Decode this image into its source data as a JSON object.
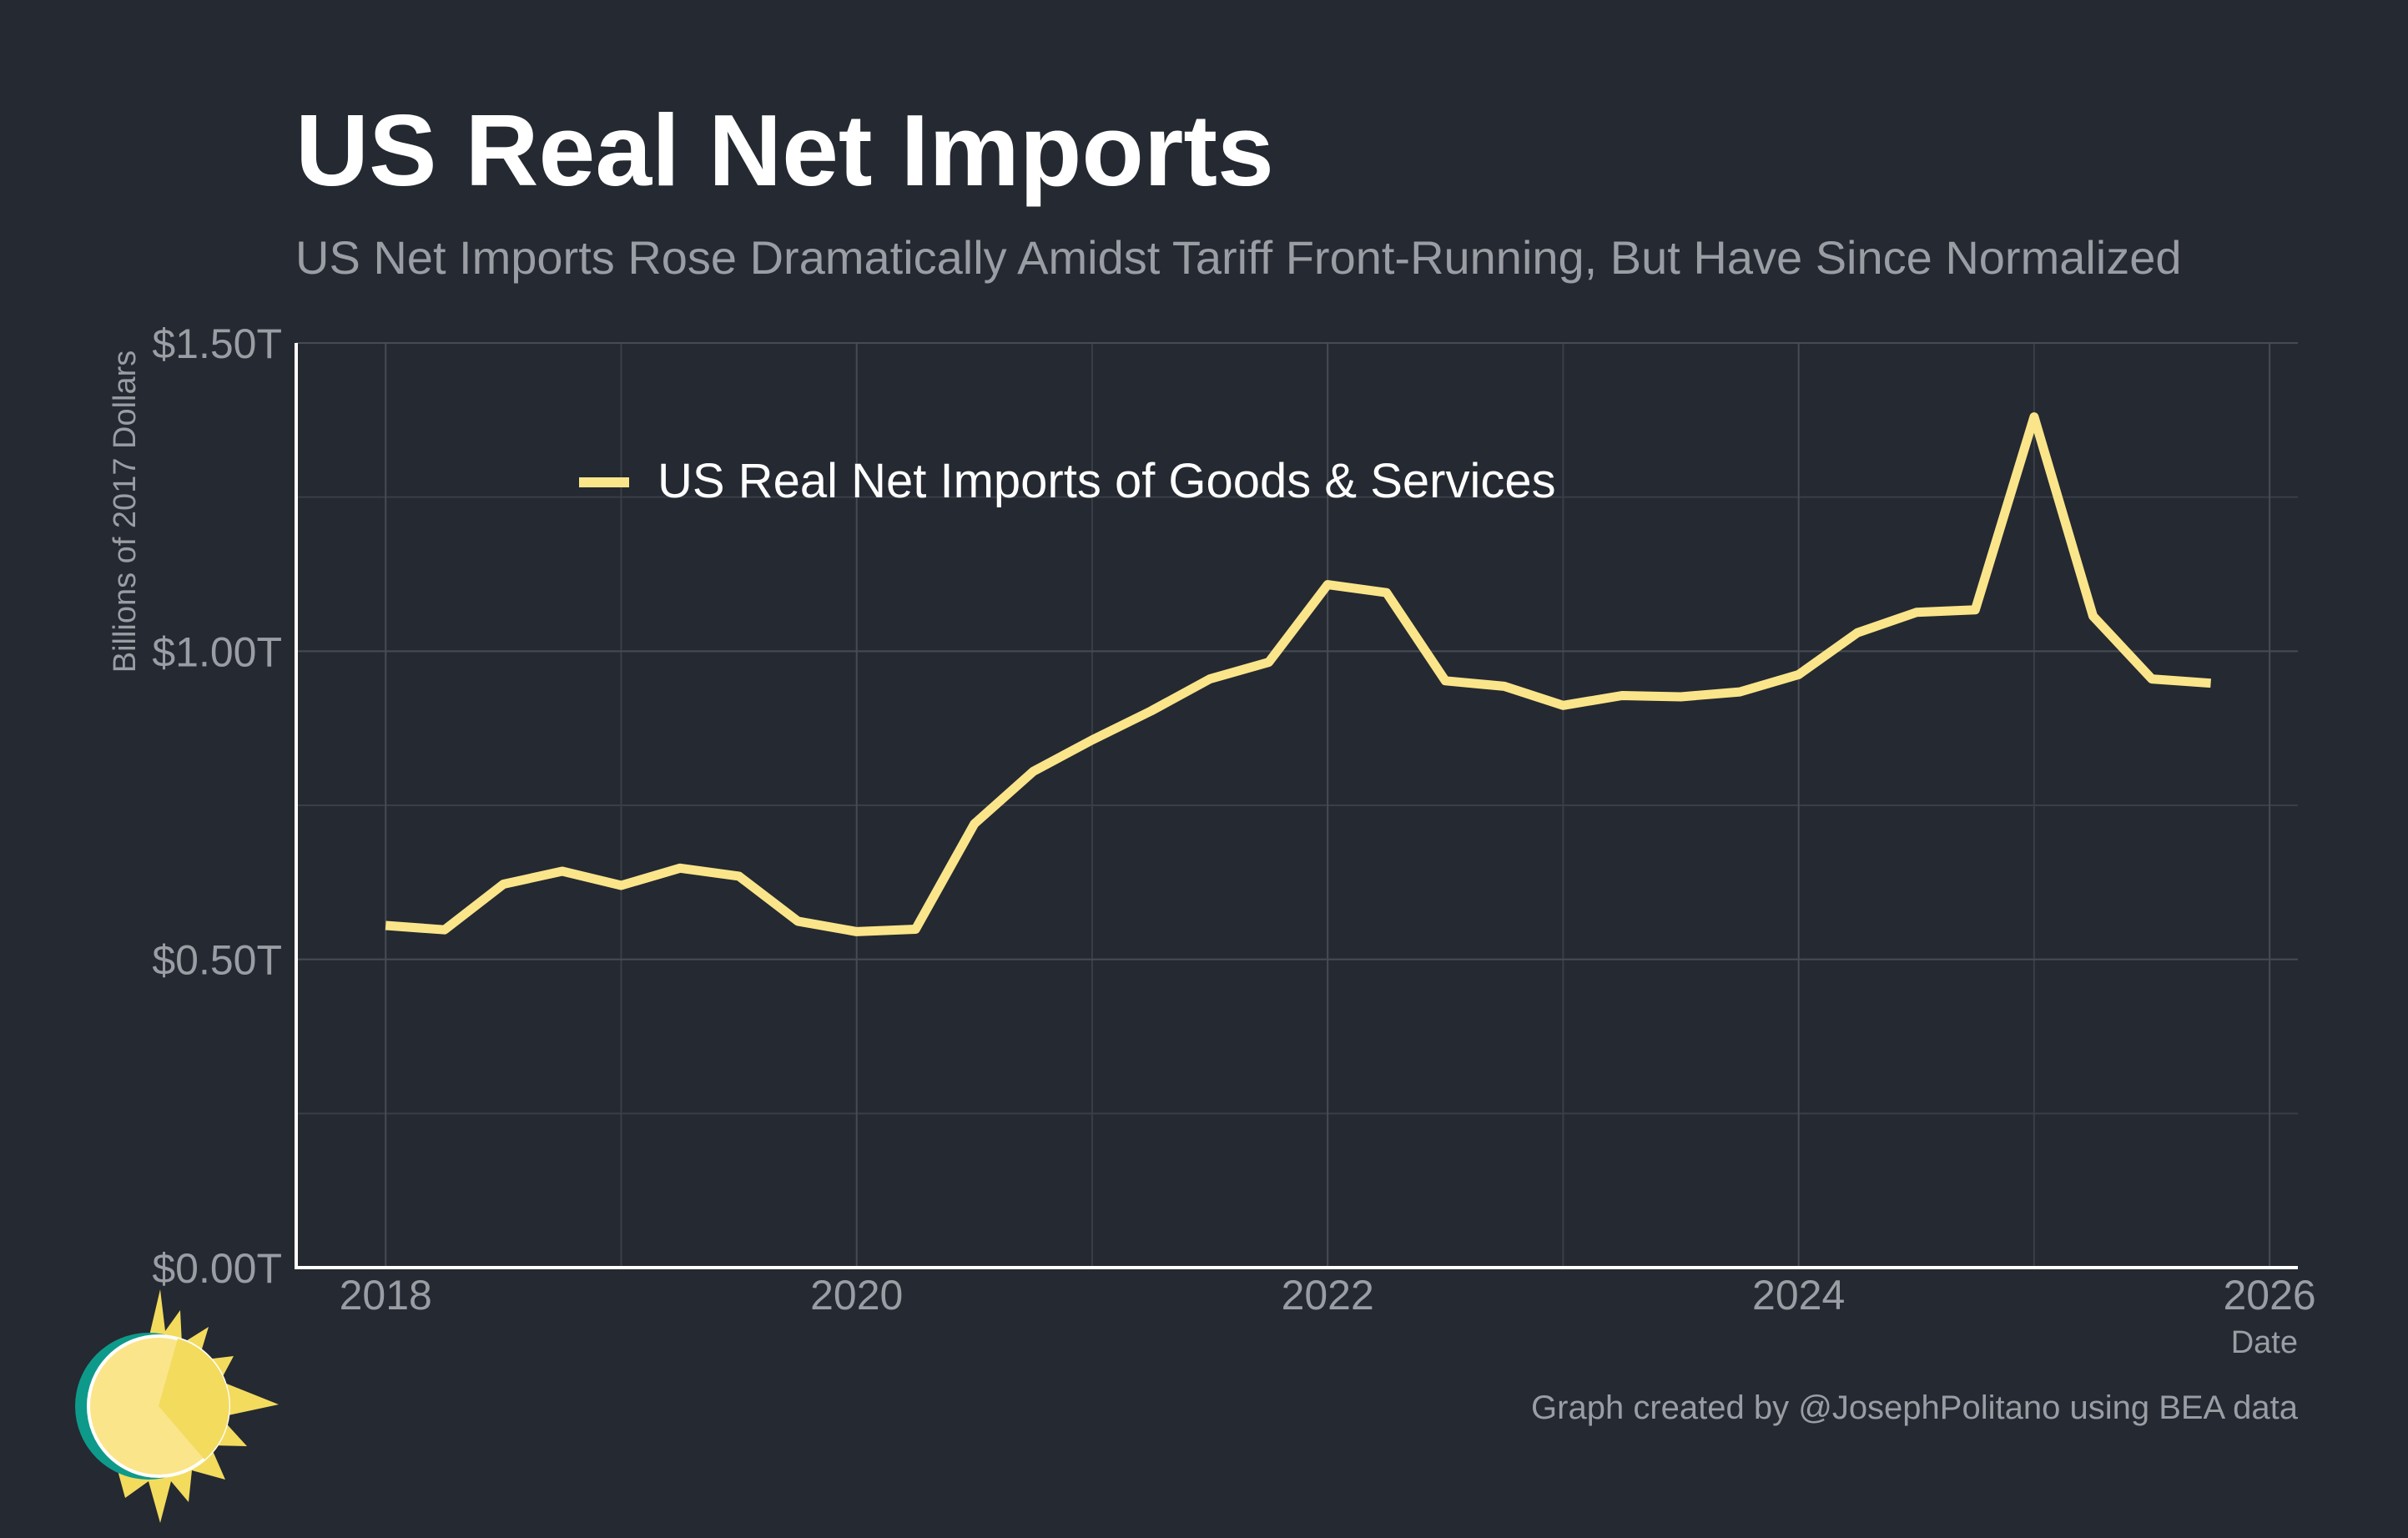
{
  "chart_data": {
    "type": "line",
    "title": "US Real Net Imports",
    "subtitle": "US Net Imports Rose Dramatically Amidst Tariff Front-Running, But Have Since Normalized",
    "ylabel": "Billions of 2017 Dollars",
    "xlabel": "Date",
    "caption": "Graph created by @JosephPolitano using BEA data",
    "xlim": [
      2017.62,
      2026.12
    ],
    "ylim": [
      0,
      1.5
    ],
    "x_ticks": [
      2018,
      2020,
      2022,
      2024,
      2026
    ],
    "x_tick_labels": [
      "2018",
      "2020",
      "2022",
      "2024",
      "2026"
    ],
    "y_ticks": [
      0,
      0.5,
      1.0,
      1.5
    ],
    "y_tick_labels": [
      "$0.00T",
      "$0.50T",
      "$1.00T",
      "$1.50T"
    ],
    "grid": true,
    "legend_position": "top-left",
    "series": [
      {
        "name": "US Real Net Imports of Goods & Services",
        "color": "#fbe58a",
        "x": [
          2018.0,
          2018.25,
          2018.5,
          2018.75,
          2019.0,
          2019.25,
          2019.5,
          2019.75,
          2020.0,
          2020.25,
          2020.5,
          2020.75,
          2021.0,
          2021.25,
          2021.5,
          2021.75,
          2022.0,
          2022.25,
          2022.5,
          2022.75,
          2023.0,
          2023.25,
          2023.5,
          2023.75,
          2024.0,
          2024.25,
          2024.5,
          2024.75,
          2025.0,
          2025.25,
          2025.5,
          2025.75
        ],
        "values": [
          0.555,
          0.548,
          0.622,
          0.643,
          0.62,
          0.648,
          0.635,
          0.562,
          0.545,
          0.549,
          0.72,
          0.805,
          0.856,
          0.903,
          0.955,
          0.982,
          1.108,
          1.095,
          0.952,
          0.943,
          0.912,
          0.928,
          0.926,
          0.934,
          0.962,
          1.03,
          1.063,
          1.067,
          1.38,
          1.057,
          0.955,
          0.948
        ]
      }
    ]
  },
  "logo": {
    "name": "sun logo",
    "colors": [
      "#0e9a8a",
      "#fbe58a",
      "#f3db5e",
      "#ffffff"
    ]
  }
}
